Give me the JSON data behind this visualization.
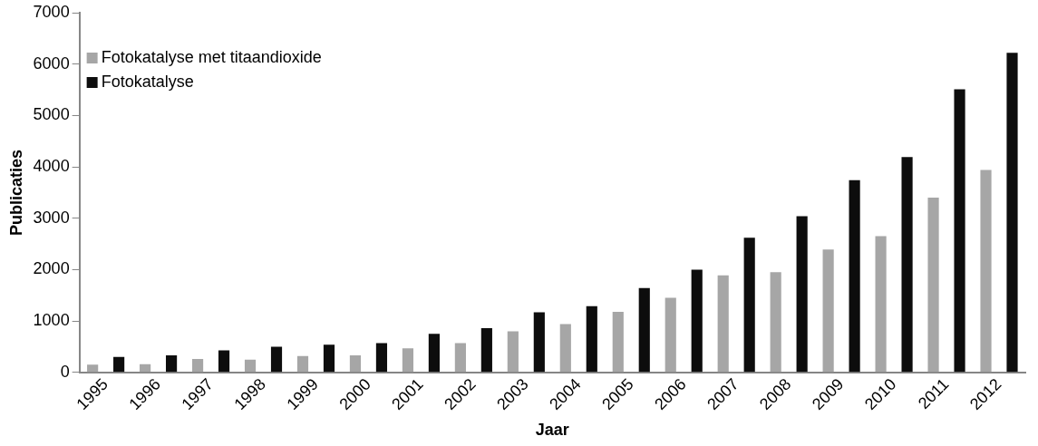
{
  "chart_data": {
    "type": "bar",
    "xlabel": "Jaar",
    "ylabel": "Publicaties",
    "categories": [
      "1995",
      "1996",
      "1997",
      "1998",
      "1999",
      "2000",
      "2001",
      "2002",
      "2003",
      "2004",
      "2005",
      "2006",
      "2007",
      "2008",
      "2009",
      "2010",
      "2011",
      "2012"
    ],
    "series": [
      {
        "name": "Fotokatalyse met titaandioxide",
        "color": "#a6a6a6",
        "values": [
          150,
          160,
          260,
          250,
          320,
          330,
          470,
          570,
          800,
          940,
          1180,
          1450,
          1890,
          1950,
          2390,
          2650,
          3400,
          3940
        ]
      },
      {
        "name": "Fotokatalyse",
        "color": "#0d0d0d",
        "values": [
          300,
          330,
          430,
          500,
          540,
          570,
          750,
          860,
          1170,
          1290,
          1640,
          2000,
          2620,
          3040,
          3740,
          4190,
          5510,
          6220
        ]
      }
    ],
    "ylim": [
      0,
      7000
    ],
    "yticks": [
      0,
      1000,
      2000,
      3000,
      4000,
      5000,
      6000,
      7000
    ],
    "grid": false,
    "legend": "top left"
  }
}
